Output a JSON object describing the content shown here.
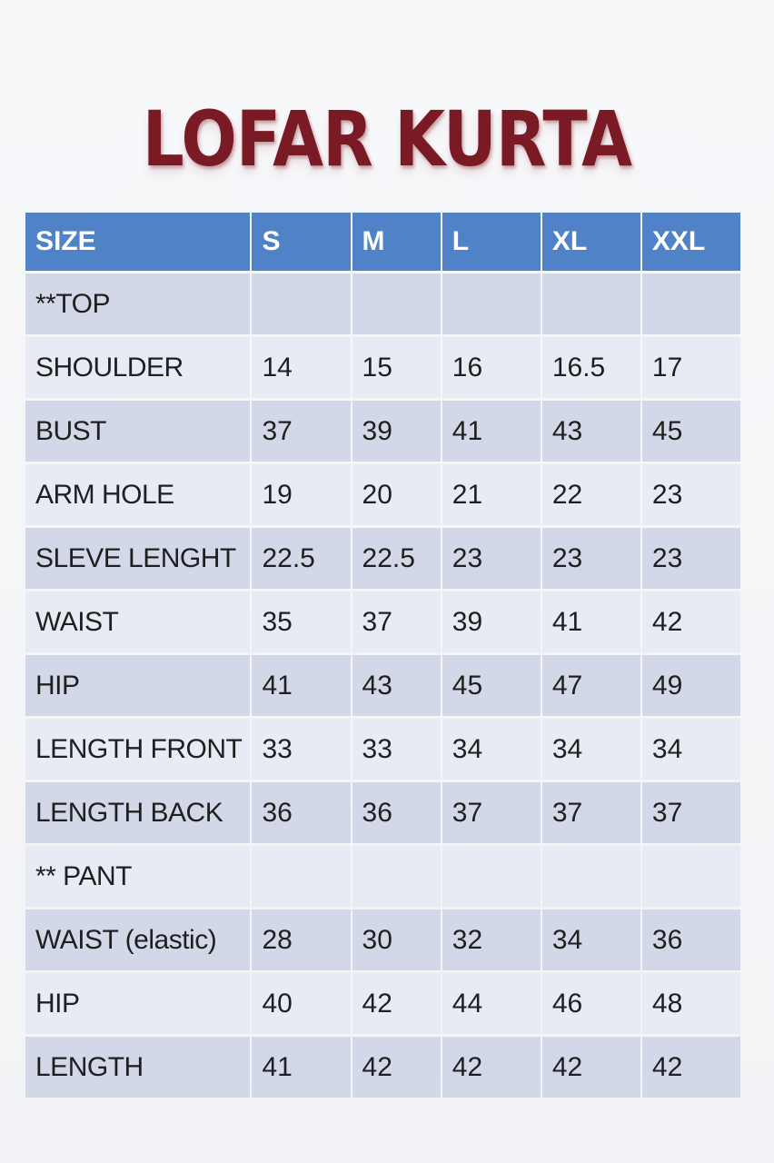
{
  "title": "LOFAR KURTA",
  "table": {
    "headers": [
      "SIZE",
      "S",
      "M",
      "L",
      "XL",
      "XXL"
    ],
    "rows": [
      [
        "**TOP",
        "",
        "",
        "",
        "",
        ""
      ],
      [
        "SHOULDER",
        "14",
        "15",
        "16",
        "16.5",
        "17"
      ],
      [
        "BUST",
        "37",
        "39",
        "41",
        "43",
        "45"
      ],
      [
        "ARM HOLE",
        "19",
        "20",
        "21",
        "22",
        "23"
      ],
      [
        "SLEVE LENGHT",
        "22.5",
        "22.5",
        "23",
        "23",
        "23"
      ],
      [
        "WAIST",
        "35",
        "37",
        "39",
        "41",
        "42"
      ],
      [
        "HIP",
        "41",
        "43",
        "45",
        "47",
        "49"
      ],
      [
        "LENGTH FRONT",
        "33",
        "33",
        "34",
        "34",
        "34"
      ],
      [
        "LENGTH BACK",
        "36",
        "36",
        "37",
        "37",
        "37"
      ],
      [
        "** PANT",
        "",
        "",
        "",
        "",
        ""
      ],
      [
        "WAIST (elastic)",
        "28",
        "30",
        "32",
        "34",
        "36"
      ],
      [
        "HIP",
        "40",
        "42",
        "44",
        "46",
        "48"
      ],
      [
        "LENGTH",
        "41",
        "42",
        "42",
        "42",
        "42"
      ]
    ]
  },
  "colors": {
    "title": "#7a1a24",
    "header_bg": "#4f82c6",
    "row_dark": "#d2d8e8",
    "row_light": "#e8ebf3"
  }
}
